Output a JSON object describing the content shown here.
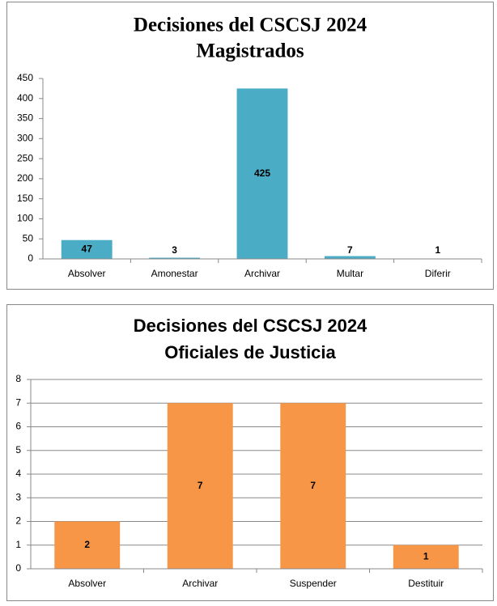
{
  "chart_data": [
    {
      "type": "bar",
      "title": "Decisiones del CSCSJ 2024",
      "subtitle": "Magistrados",
      "categories": [
        "Absolver",
        "Amonestar",
        "Archivar",
        "Multar",
        "Diferir"
      ],
      "values": [
        47,
        3,
        425,
        7,
        1
      ],
      "color": "#4bacc6",
      "ylim": [
        0,
        450
      ],
      "yticks": [
        0,
        50,
        100,
        150,
        200,
        250,
        300,
        350,
        400,
        450
      ],
      "grid": false
    },
    {
      "type": "bar",
      "title": "Decisiones del CSCSJ 2024",
      "subtitle": "Oficiales de Justicia",
      "categories": [
        "Absolver",
        "Archivar",
        "Suspender",
        "Destituir"
      ],
      "values": [
        2,
        7,
        7,
        1
      ],
      "color": "#f79646",
      "ylim": [
        0,
        8
      ],
      "yticks": [
        0,
        1,
        2,
        3,
        4,
        5,
        6,
        7,
        8
      ],
      "grid": true
    }
  ]
}
